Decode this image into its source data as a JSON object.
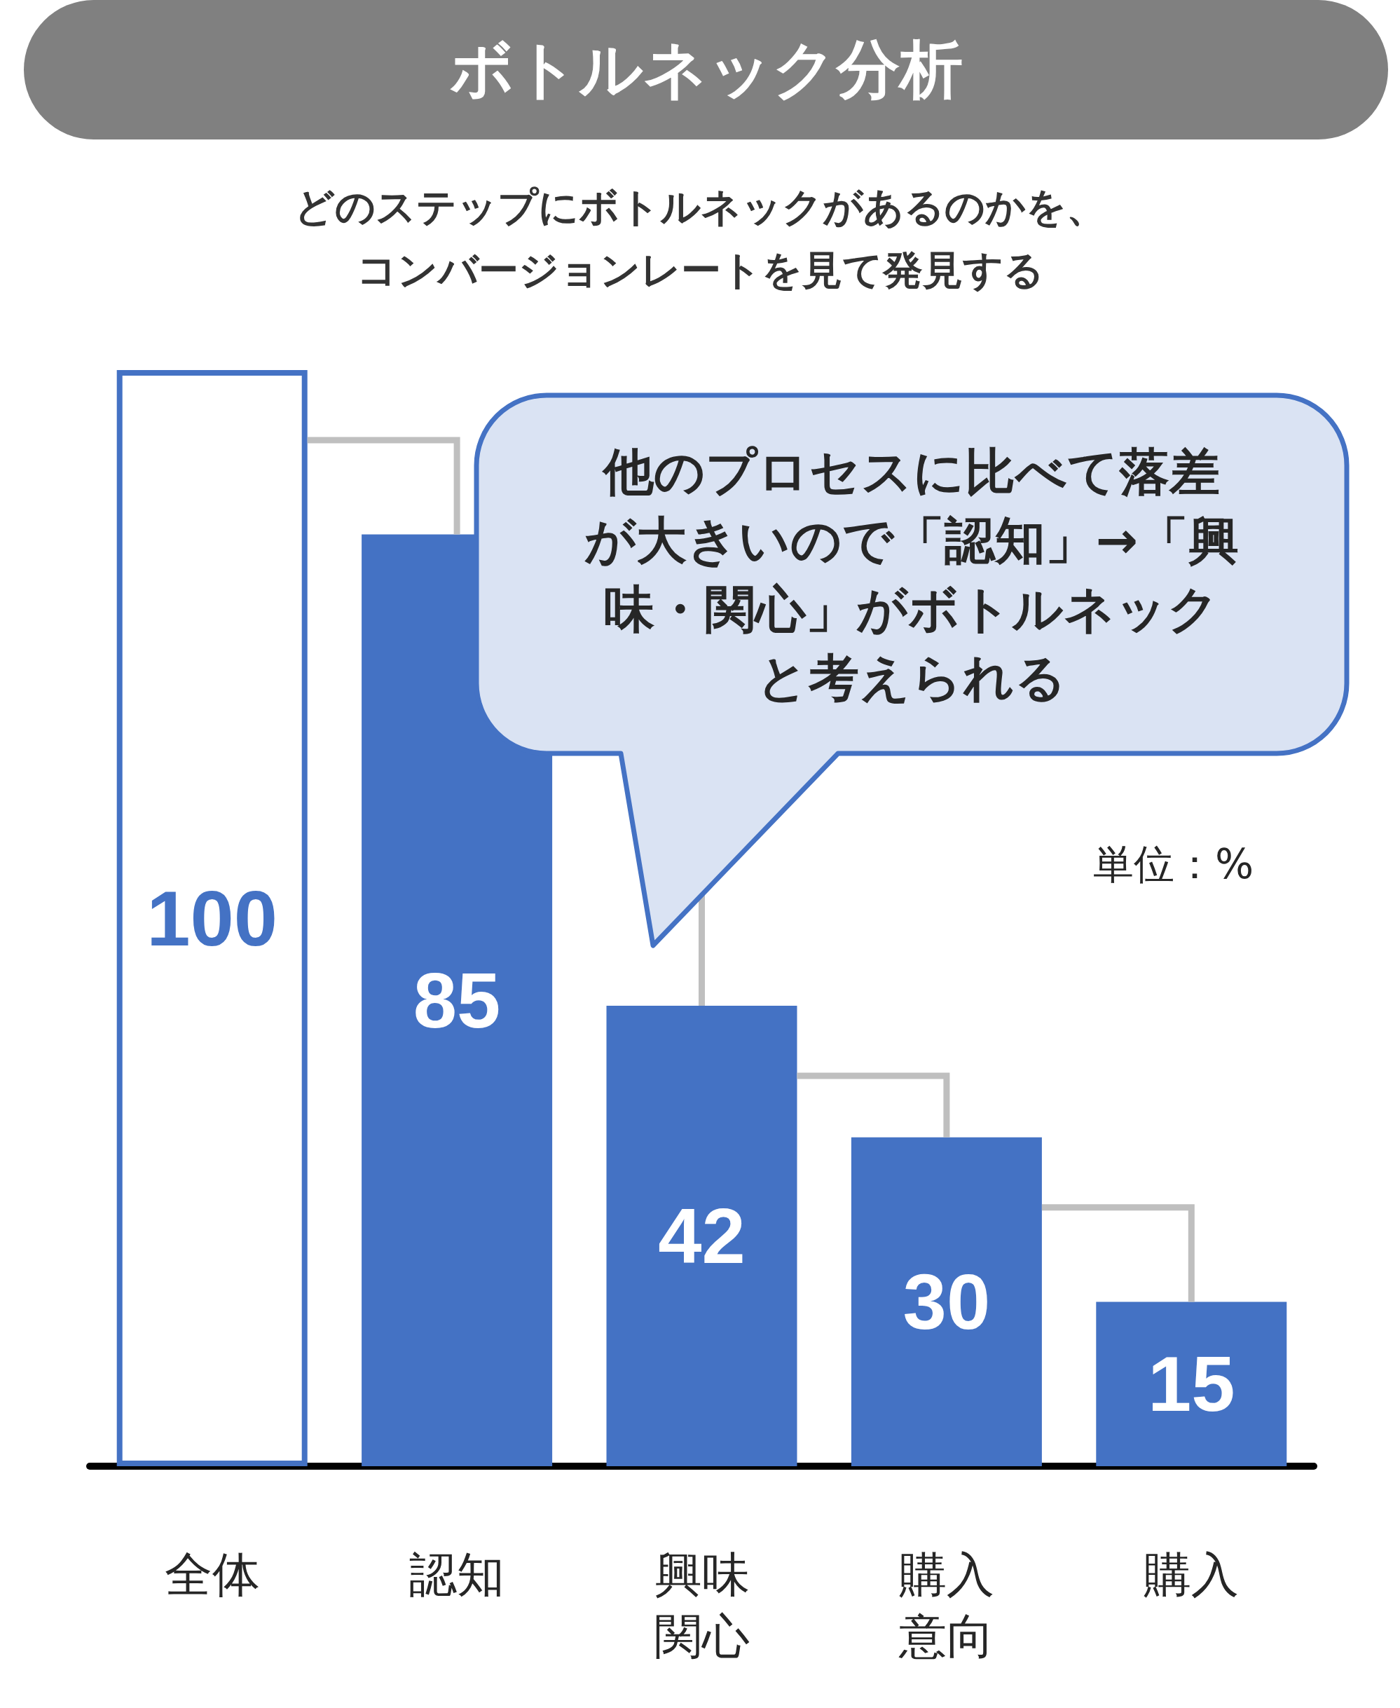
{
  "chart_data": {
    "type": "bar",
    "title": "ボトルネック分析",
    "subtitle": "どのステップにボトルネックがあるのかを、コンバージョンレートを見て発見する",
    "categories": [
      "全体",
      "認知",
      "興味関心",
      "購入意向",
      "購入"
    ],
    "series": [
      {
        "color": "#4472c4",
        "values": [
          100,
          85,
          42,
          30,
          15
        ],
        "colors": [
          "#ffffff",
          "#4472c4",
          "#4472c4",
          "#4472c4",
          "#4472c4"
        ]
      }
    ],
    "ylim": [
      0,
      100
    ],
    "tick_labels": "x",
    "data_labels": true,
    "annotations": [
      "他のプロセスに比べて落差が大きいので「認知」→「興味・関心」がボトルネックと考えられる",
      "単位：%"
    ]
  }
}
